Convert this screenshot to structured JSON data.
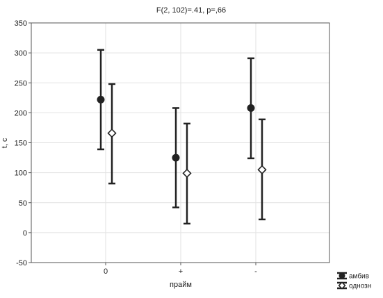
{
  "chart_data": {
    "type": "scatter",
    "title": "F(2, 102)=.41, p=,66",
    "xlabel": "прайм",
    "ylabel": "t, c",
    "categories": [
      "0",
      "+",
      "-"
    ],
    "ylim": [
      -50,
      350
    ],
    "yticks": [
      -50,
      0,
      50,
      100,
      150,
      200,
      250,
      300,
      350
    ],
    "grid": true,
    "legend_position": "bottom-right",
    "series": [
      {
        "name": "амбив",
        "marker": "filled-circle",
        "color": "#222222",
        "values": [
          222,
          125,
          208
        ],
        "lower": [
          139,
          42,
          124
        ],
        "upper": [
          305,
          208,
          291
        ]
      },
      {
        "name": "однозн",
        "marker": "open-diamond",
        "color": "#222222",
        "values": [
          166,
          99,
          105
        ],
        "lower": [
          82,
          15,
          22
        ],
        "upper": [
          248,
          182,
          189
        ]
      }
    ]
  }
}
